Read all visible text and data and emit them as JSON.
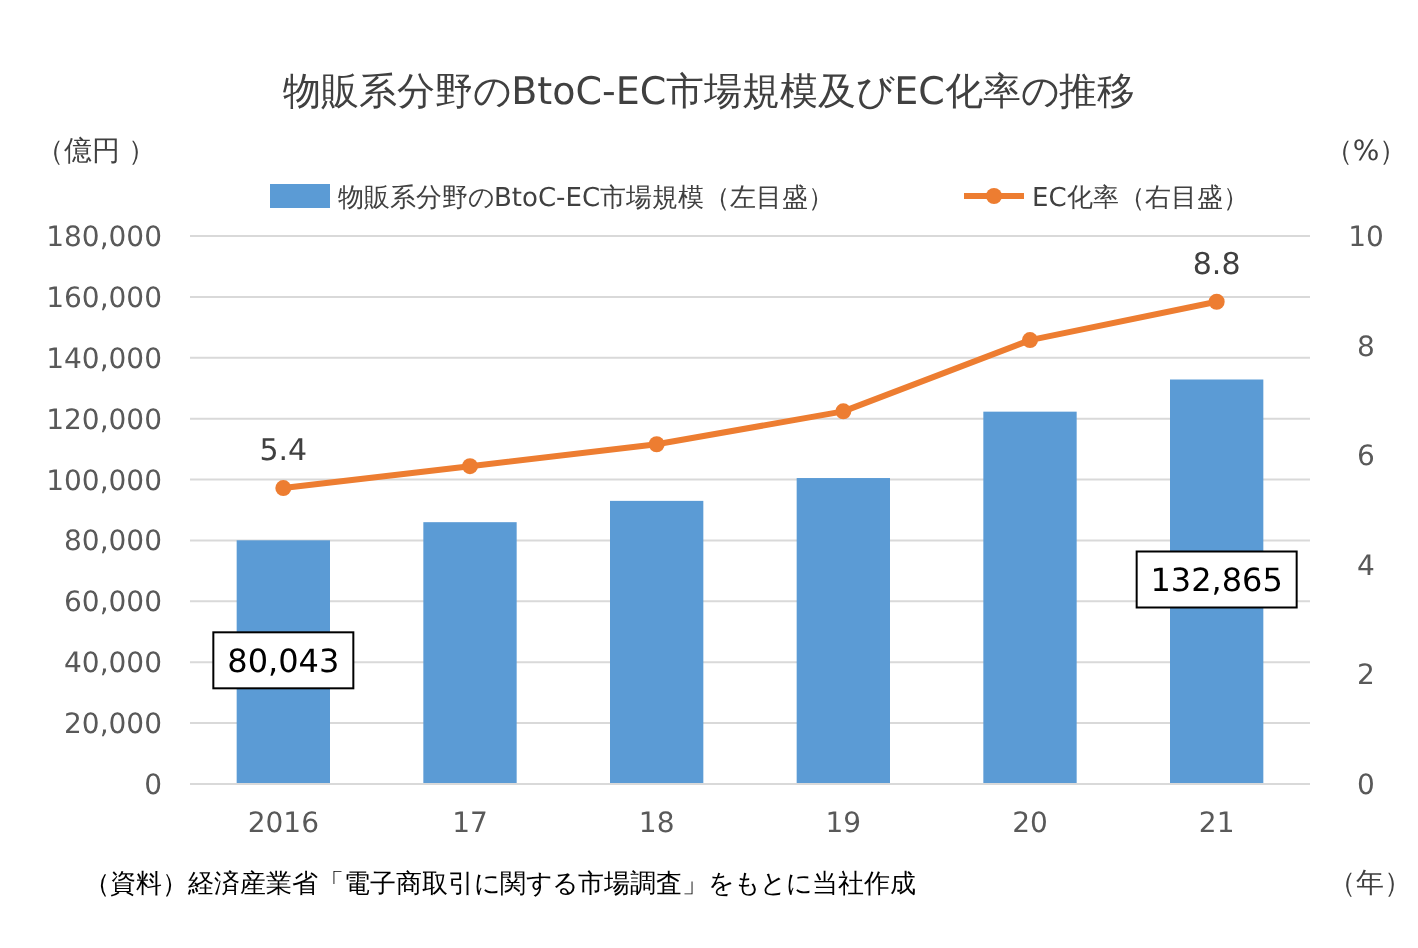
{
  "chart_data": {
    "type": "bar",
    "title": "物販系分野のBtoC-EC市場規模及びEC化率の推移",
    "xlabel": "（年）",
    "ylabel": "（億円 ）",
    "y2label": "（%）",
    "categories": [
      "2016",
      "17",
      "18",
      "19",
      "20",
      "21"
    ],
    "series": [
      {
        "name": "物販系分野のBtoC-EC市場規模（左目盛）",
        "color": "#5b9bd5",
        "values": [
          80043,
          86000,
          93000,
          100500,
          122300,
          132865
        ],
        "value_labels": [
          "80,043",
          null,
          null,
          null,
          null,
          "132,865"
        ]
      },
      {
        "name": "EC化率（右目盛）",
        "type": "line",
        "axis": "y2",
        "color": "#ed7d31",
        "marker": "circle",
        "values": [
          5.4,
          5.8,
          6.2,
          6.8,
          8.1,
          8.8
        ],
        "value_labels": [
          "5.4",
          null,
          null,
          null,
          null,
          "8.8"
        ]
      }
    ],
    "ylim": [
      0,
      180000
    ],
    "yticks": [
      0,
      {
        "value": 20000,
        "label": "20,000"
      },
      {
        "value": 40000,
        "label": "40,000"
      },
      {
        "value": 60000,
        "label": "60,000"
      },
      {
        "value": 80000,
        "label": "80,000"
      },
      {
        "value": 100000,
        "label": "100,000"
      },
      {
        "value": 120000,
        "label": "120,000"
      },
      {
        "value": 140000,
        "label": "140,000"
      },
      {
        "value": 160000,
        "label": "160,000"
      },
      {
        "value": 180000,
        "label": "180,000"
      }
    ],
    "y2lim": [
      0,
      10
    ],
    "y2ticks": [
      0,
      2,
      4,
      6,
      8,
      10
    ],
    "grid": "y",
    "legend": "top",
    "annotations": [
      "（資料）経済産業省「電子商取引に関する市場調査」をもとに当社作成"
    ]
  }
}
